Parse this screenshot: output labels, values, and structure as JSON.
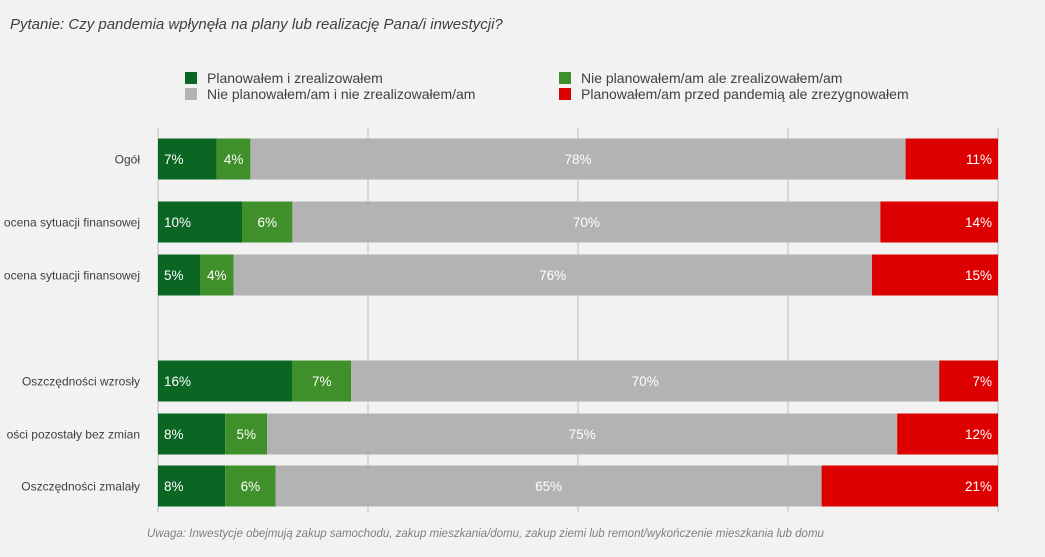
{
  "question": "Pytanie: Czy pandemia wpłynęła na plany lub realizację Pana/i inwestycji?",
  "footnote": "Uwaga: Inwestycje obejmują zakup samochodu, zakup mieszkania/domu, zakup ziemi lub remont/wykończenie mieszkania lub domu",
  "colors": {
    "planned_realized": "#0b6623",
    "unplanned_realized": "#3f8f2a",
    "unplanned_unrealized": "#b3b3b3",
    "planned_abandoned": "#dd0000",
    "background": "#f2f2f2",
    "grid": "#d0d0d0"
  },
  "legend": [
    {
      "label": "Planowałem i zrealizowałem",
      "color": "#0b6623"
    },
    {
      "label": "Nie planowałem/am ale zrealizowałem/am",
      "color": "#3f8f2a"
    },
    {
      "label": "Nie planowałem/am i nie zrealizowałem/am",
      "color": "#b3b3b3"
    },
    {
      "label": "Planowałem/am przed pandemią ale zrezygnowałem",
      "color": "#dd0000"
    }
  ],
  "chart_data": {
    "type": "bar",
    "orientation": "horizontal",
    "stacked": true,
    "xlim": [
      0,
      100
    ],
    "grid": true,
    "legend_position": "top",
    "categories": [
      "Ogół",
      "ocena sytuacji finansowej",
      "ocena sytuacji finansowej",
      "Oszczędności wzrosły",
      "ości pozostały bez zmian",
      "Oszczędności zmalały"
    ],
    "series": [
      {
        "name": "Planowałem i zrealizowałem",
        "values": [
          7,
          10,
          5,
          16,
          8,
          8
        ],
        "labels": [
          "7%",
          "10%",
          "5%",
          "16%",
          "8%",
          "8%"
        ]
      },
      {
        "name": "Nie planowałem/am ale zrealizowałem/am",
        "values": [
          4,
          6,
          4,
          7,
          5,
          6
        ],
        "labels": [
          "4%",
          "6%",
          "4%",
          "7%",
          "5%",
          "6%"
        ]
      },
      {
        "name": "Nie planowałem/am i nie zrealizowałem/am",
        "values": [
          78,
          70,
          76,
          70,
          75,
          65
        ],
        "labels": [
          "78%",
          "70%",
          "76%",
          "70%",
          "75%",
          "65%"
        ]
      },
      {
        "name": "Planowałem/am przed pandemią ale zrezygnowałem",
        "values": [
          11,
          14,
          15,
          7,
          12,
          21
        ],
        "labels": [
          "11%",
          "14%",
          "15%",
          "7%",
          "12%",
          "21%"
        ]
      }
    ]
  }
}
